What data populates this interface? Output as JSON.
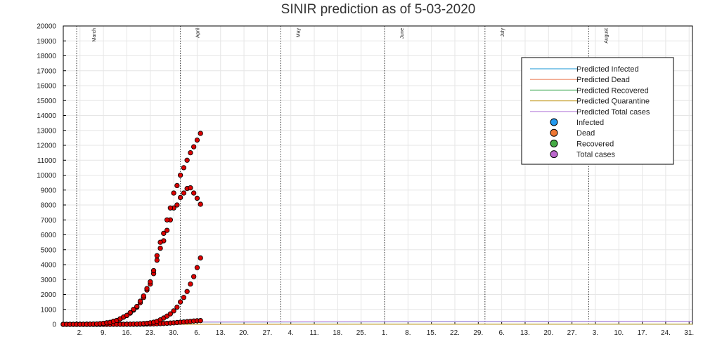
{
  "chart_data": {
    "type": "scatter",
    "title": "SINIR prediction as of 5-03-2020",
    "xlabel": "",
    "ylabel": "",
    "ylim": [
      0,
      20000
    ],
    "y_ticks": [
      0,
      1000,
      2000,
      3000,
      4000,
      5000,
      6000,
      7000,
      8000,
      9000,
      10000,
      11000,
      12000,
      13000,
      14000,
      15000,
      16000,
      17000,
      18000,
      19000,
      20000
    ],
    "x_range_dates": [
      "2020-02-26",
      "2020-09-01"
    ],
    "x_ticks": [
      {
        "label": "2.",
        "date": "2020-03-02"
      },
      {
        "label": "9.",
        "date": "2020-03-09"
      },
      {
        "label": "16.",
        "date": "2020-03-16"
      },
      {
        "label": "23.",
        "date": "2020-03-23"
      },
      {
        "label": "30.",
        "date": "2020-03-30"
      },
      {
        "label": "6.",
        "date": "2020-04-06"
      },
      {
        "label": "13.",
        "date": "2020-04-13"
      },
      {
        "label": "20.",
        "date": "2020-04-20"
      },
      {
        "label": "27.",
        "date": "2020-04-27"
      },
      {
        "label": "4.",
        "date": "2020-05-04"
      },
      {
        "label": "11.",
        "date": "2020-05-11"
      },
      {
        "label": "18.",
        "date": "2020-05-18"
      },
      {
        "label": "25.",
        "date": "2020-05-25"
      },
      {
        "label": "1.",
        "date": "2020-06-01"
      },
      {
        "label": "8.",
        "date": "2020-06-08"
      },
      {
        "label": "15.",
        "date": "2020-06-15"
      },
      {
        "label": "22.",
        "date": "2020-06-22"
      },
      {
        "label": "29.",
        "date": "2020-06-29"
      },
      {
        "label": "6.",
        "date": "2020-07-06"
      },
      {
        "label": "13.",
        "date": "2020-07-13"
      },
      {
        "label": "20.",
        "date": "2020-07-20"
      },
      {
        "label": "27.",
        "date": "2020-07-27"
      },
      {
        "label": "3.",
        "date": "2020-08-03"
      },
      {
        "label": "10.",
        "date": "2020-08-10"
      },
      {
        "label": "17.",
        "date": "2020-08-17"
      },
      {
        "label": "24.",
        "date": "2020-08-24"
      },
      {
        "label": "31.",
        "date": "2020-08-31"
      }
    ],
    "month_markers": [
      {
        "label": "March",
        "date": "2020-03-01"
      },
      {
        "label": "April",
        "date": "2020-04-01"
      },
      {
        "label": "May",
        "date": "2020-05-01"
      },
      {
        "label": "June",
        "date": "2020-06-01"
      },
      {
        "label": "July",
        "date": "2020-07-01"
      },
      {
        "label": "August",
        "date": "2020-08-01"
      },
      {
        "label": "",
        "date": "2020-09-01"
      }
    ],
    "grid": true,
    "legend_position": "top-right",
    "legend": [
      {
        "name": "Predicted Infected",
        "kind": "line",
        "color": "#44aadd"
      },
      {
        "name": "Predicted Dead",
        "kind": "line",
        "color": "#ee8866"
      },
      {
        "name": "Predicted Recovered",
        "kind": "line",
        "color": "#66bb77"
      },
      {
        "name": "Predicted Quarantine",
        "kind": "line",
        "color": "#ccaa44"
      },
      {
        "name": "Predicted Total cases",
        "kind": "line",
        "color": "#bb88dd"
      },
      {
        "name": "Infected",
        "kind": "marker",
        "color": "#2299ee"
      },
      {
        "name": "Dead",
        "kind": "marker",
        "color": "#ee7733"
      },
      {
        "name": "Recovered",
        "kind": "marker",
        "color": "#44aa44"
      },
      {
        "name": "Total cases",
        "kind": "marker",
        "color": "#bb66cc"
      }
    ],
    "predicted_lines": [
      {
        "name": "Predicted Infected",
        "color": "#44aadd",
        "points": [
          [
            "2020-02-26",
            40
          ],
          [
            "2020-04-07",
            150
          ],
          [
            "2020-09-01",
            190
          ]
        ]
      },
      {
        "name": "Predicted Dead",
        "color": "#ee8866",
        "points": [
          [
            "2020-02-26",
            0
          ],
          [
            "2020-09-01",
            5
          ]
        ]
      },
      {
        "name": "Predicted Recovered",
        "color": "#66bb77",
        "points": [
          [
            "2020-02-26",
            0
          ],
          [
            "2020-09-01",
            10
          ]
        ]
      },
      {
        "name": "Predicted Quarantine",
        "color": "#ccaa44",
        "points": [
          [
            "2020-02-26",
            0
          ],
          [
            "2020-09-01",
            10
          ]
        ]
      },
      {
        "name": "Predicted Total cases",
        "color": "#bb88dd",
        "points": [
          [
            "2020-02-26",
            40
          ],
          [
            "2020-04-07",
            160
          ],
          [
            "2020-09-01",
            200
          ]
        ]
      }
    ],
    "observed_color": "#dd0000",
    "observed": {
      "dates": [
        "2020-02-26",
        "2020-02-27",
        "2020-02-28",
        "2020-02-29",
        "2020-03-01",
        "2020-03-02",
        "2020-03-03",
        "2020-03-04",
        "2020-03-05",
        "2020-03-06",
        "2020-03-07",
        "2020-03-08",
        "2020-03-09",
        "2020-03-10",
        "2020-03-11",
        "2020-03-12",
        "2020-03-13",
        "2020-03-14",
        "2020-03-15",
        "2020-03-16",
        "2020-03-17",
        "2020-03-18",
        "2020-03-19",
        "2020-03-20",
        "2020-03-21",
        "2020-03-22",
        "2020-03-23",
        "2020-03-24",
        "2020-03-25",
        "2020-03-26",
        "2020-03-27",
        "2020-03-28",
        "2020-03-29",
        "2020-03-30",
        "2020-03-31",
        "2020-04-01",
        "2020-04-02",
        "2020-04-03",
        "2020-04-04",
        "2020-04-05",
        "2020-04-06",
        "2020-04-07"
      ],
      "infected": [
        1,
        1,
        1,
        1,
        2,
        2,
        4,
        8,
        12,
        16,
        25,
        40,
        65,
        100,
        130,
        200,
        260,
        360,
        480,
        590,
        750,
        950,
        1150,
        1450,
        1800,
        2300,
        2700,
        3400,
        4300,
        5100,
        5600,
        6300,
        7000,
        7800,
        8000,
        8500,
        8800,
        9100,
        9150,
        8800,
        8450,
        8050
      ],
      "dead": [
        0,
        0,
        0,
        0,
        0,
        0,
        0,
        0,
        0,
        0,
        0,
        0,
        0,
        0,
        0,
        1,
        1,
        1,
        2,
        2,
        3,
        4,
        6,
        9,
        12,
        16,
        20,
        25,
        35,
        45,
        55,
        70,
        85,
        100,
        120,
        140,
        160,
        180,
        200,
        220,
        240,
        250
      ],
      "recovered": [
        0,
        0,
        0,
        0,
        0,
        0,
        0,
        0,
        0,
        0,
        0,
        0,
        0,
        0,
        1,
        1,
        2,
        3,
        5,
        8,
        12,
        18,
        25,
        35,
        50,
        70,
        100,
        140,
        200,
        300,
        420,
        550,
        700,
        900,
        1150,
        1500,
        1800,
        2200,
        2700,
        3200,
        3800,
        4450
      ],
      "total": [
        1,
        1,
        1,
        1,
        2,
        2,
        4,
        8,
        12,
        16,
        25,
        40,
        65,
        100,
        130,
        200,
        260,
        370,
        490,
        600,
        780,
        1000,
        1200,
        1550,
        1900,
        2400,
        2850,
        3600,
        4600,
        5500,
        6100,
        7000,
        7800,
        8800,
        9300,
        10000,
        10500,
        11000,
        11500,
        11900,
        12350,
        12800
      ]
    }
  }
}
